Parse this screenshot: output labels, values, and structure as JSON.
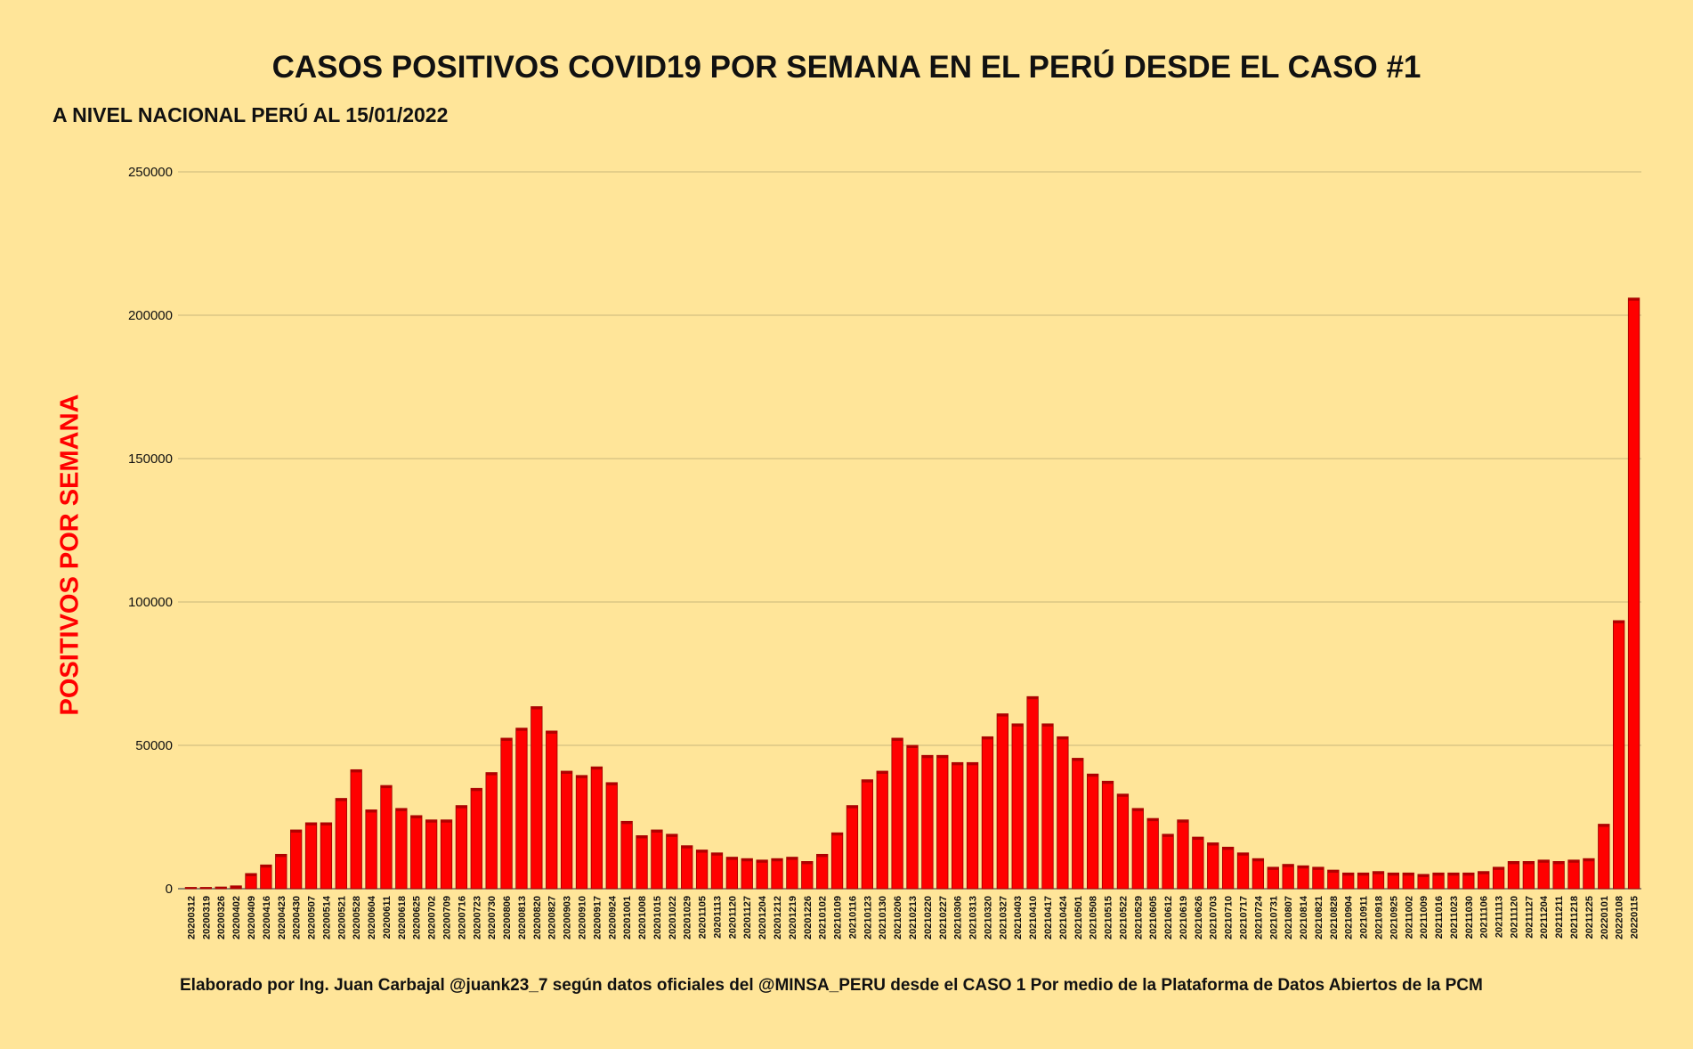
{
  "chart_data": {
    "type": "bar",
    "title": "CASOS POSITIVOS COVID19 POR SEMANA EN EL PERÚ DESDE EL CASO #1",
    "subtitle": "A NIVEL NACIONAL PERÚ AL 15/01/2022",
    "ylabel": "POSITIVOS POR SEMANA",
    "xlabel": "",
    "ylim": [
      0,
      250000
    ],
    "yticks": [
      "0",
      "50000",
      "100000",
      "150000",
      "200000",
      "250000"
    ],
    "grid": true,
    "bar_color": "#ff0000",
    "categories": [
      "20200312",
      "20200319",
      "20200326",
      "20200402",
      "20200409",
      "20200416",
      "20200423",
      "20200430",
      "20200507",
      "20200514",
      "20200521",
      "20200528",
      "20200604",
      "20200611",
      "20200618",
      "20200625",
      "20200702",
      "20200709",
      "20200716",
      "20200723",
      "20200730",
      "20200806",
      "20200813",
      "20200820",
      "20200827",
      "20200903",
      "20200910",
      "20200917",
      "20200924",
      "20201001",
      "20201008",
      "20201015",
      "20201022",
      "20201029",
      "20201105",
      "20201113",
      "20201120",
      "20201127",
      "20201204",
      "20201212",
      "20201219",
      "20201226",
      "20210102",
      "20210109",
      "20210116",
      "20210123",
      "20210130",
      "20210206",
      "20210213",
      "20210220",
      "20210227",
      "20210306",
      "20210313",
      "20210320",
      "20210327",
      "20210403",
      "20210410",
      "20210417",
      "20210424",
      "20210501",
      "20210508",
      "20210515",
      "20210522",
      "20210529",
      "20210605",
      "20210612",
      "20210619",
      "20210626",
      "20210703",
      "20210710",
      "20210717",
      "20210724",
      "20210731",
      "20210807",
      "20210814",
      "20210821",
      "20210828",
      "20210904",
      "20210911",
      "20210918",
      "20210925",
      "20211002",
      "20211009",
      "20211016",
      "20211023",
      "20211030",
      "20211106",
      "20211113",
      "20211120",
      "20211127",
      "20211204",
      "20211211",
      "20211218",
      "20211225",
      "20220101",
      "20220108",
      "20220115"
    ],
    "values": [
      100,
      300,
      600,
      1000,
      5300,
      8300,
      12000,
      20500,
      23000,
      23000,
      31500,
      41500,
      27500,
      36000,
      28000,
      25500,
      24000,
      24000,
      29000,
      35000,
      40500,
      52500,
      56000,
      63500,
      55000,
      41000,
      39500,
      42500,
      37000,
      23500,
      18500,
      20500,
      19000,
      15000,
      13500,
      12500,
      11000,
      10500,
      10000,
      10500,
      11000,
      9500,
      12000,
      19500,
      29000,
      38000,
      41000,
      52500,
      50000,
      46500,
      46500,
      44000,
      44000,
      53000,
      61000,
      57500,
      67000,
      57500,
      53000,
      45500,
      40000,
      37500,
      33000,
      28000,
      24500,
      19000,
      24000,
      18000,
      16000,
      14500,
      12500,
      10500,
      7500,
      8500,
      8000,
      7500,
      6500,
      5500,
      5500,
      6000,
      5500,
      5500,
      5000,
      5500,
      5500,
      5500,
      6000,
      7500,
      9500,
      9500,
      10000,
      9500,
      10000,
      10500,
      22500,
      93500,
      206000
    ]
  },
  "footer": "Elaborado por Ing. Juan Carbajal @juank23_7 según datos oficiales del @MINSA_PERU desde el CASO 1 Por medio de la Plataforma de Datos Abiertos de la PCM"
}
